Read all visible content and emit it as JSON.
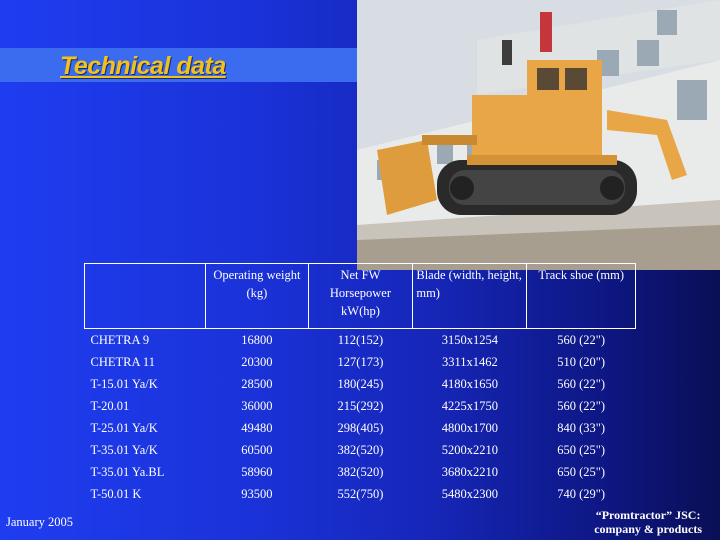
{
  "title": "Technical data",
  "table": {
    "headers": [
      "",
      "Operating weight (kg)",
      "Net FW Horsepower kW(hp)",
      "Blade (width, height, mm)",
      "Track shoe (mm)"
    ],
    "rows": [
      [
        "CHETRA 9",
        "16800",
        "112(152)",
        "3150x1254",
        "560 (22\")"
      ],
      [
        "CHETRA 11",
        "20300",
        "127(173)",
        "3311x1462",
        "510 (20\")"
      ],
      [
        "T-15.01 Ya/K",
        "28500",
        "180(245)",
        "4180x1650",
        "560 (22\")"
      ],
      [
        "T-20.01",
        "36000",
        "215(292)",
        "4225x1750",
        "560 (22\")"
      ],
      [
        "T-25.01 Ya/K",
        "49480",
        "298(405)",
        "4800x1700",
        "840 (33\")"
      ],
      [
        "T-35.01 Ya/K",
        "60500",
        "382(520)",
        "5200x2210",
        "650 (25\")"
      ],
      [
        "T-35.01 Ya.BL",
        "58960",
        "382(520)",
        "3680x2210",
        "650 (25\")"
      ],
      [
        "T-50.01 K",
        "93500",
        "552(750)",
        "5480x2300",
        "740 (29\")"
      ]
    ]
  },
  "footer": {
    "date": "January 2005",
    "company_line1": "“Promtractor” JSC:",
    "company_line2": "company & products"
  },
  "photo": {
    "icon": "bulldozer-photo"
  },
  "colors": {
    "title": "#f3c21a",
    "title_bar": "#3b6cf0",
    "background": "#1f3df0"
  }
}
